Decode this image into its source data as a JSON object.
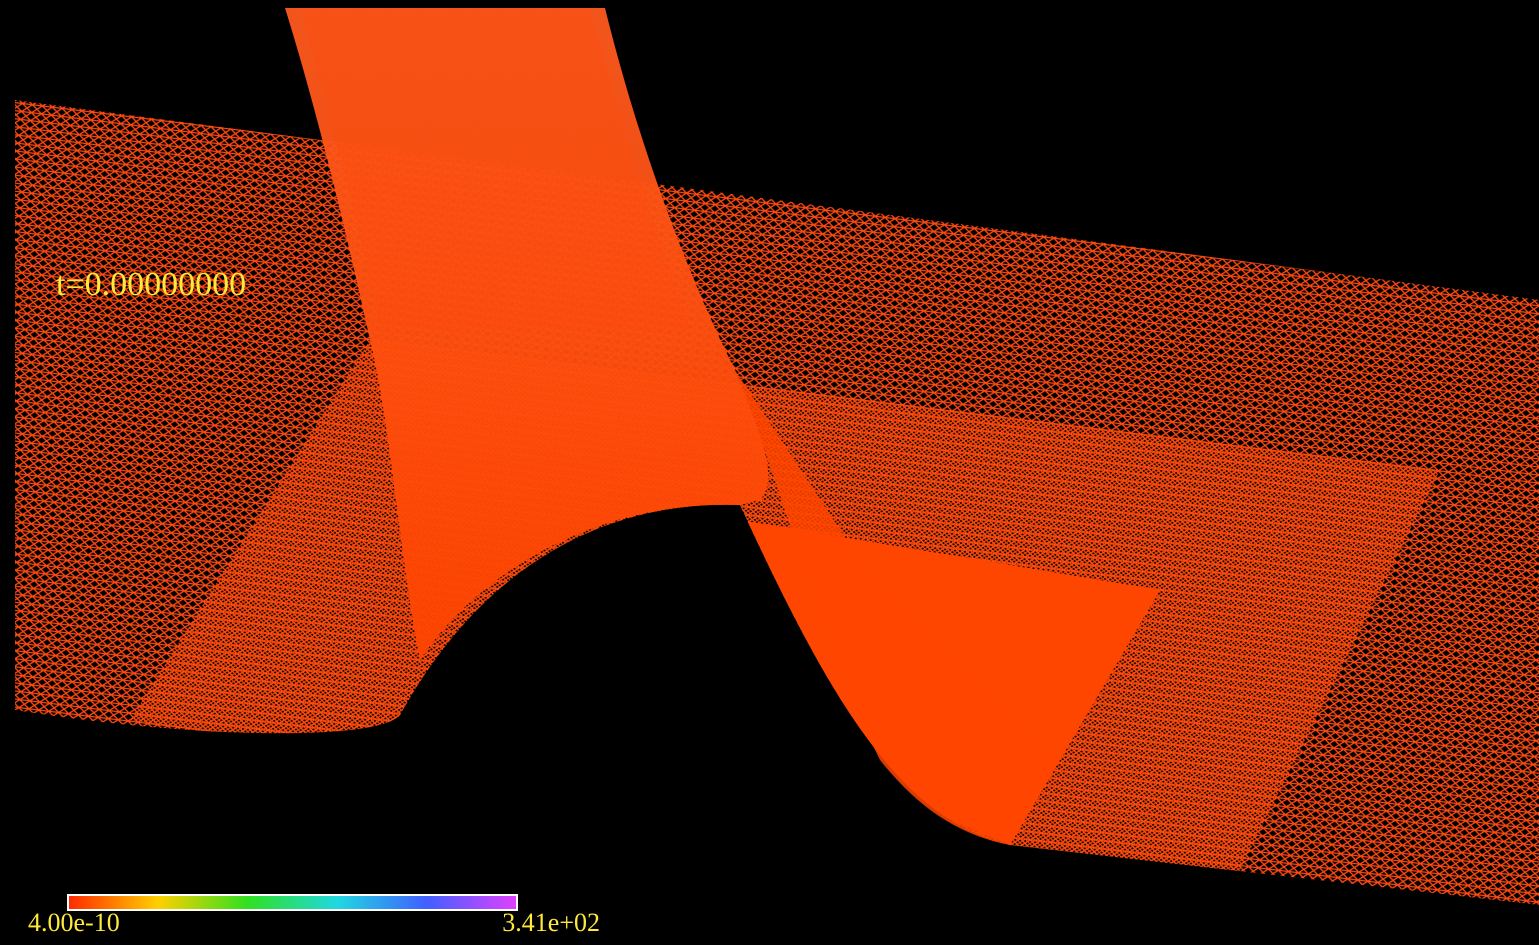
{
  "time_label": "t=0.00000000",
  "colorbar": {
    "min_label": "4.00e-10",
    "max_label": "3.41e+02"
  }
}
